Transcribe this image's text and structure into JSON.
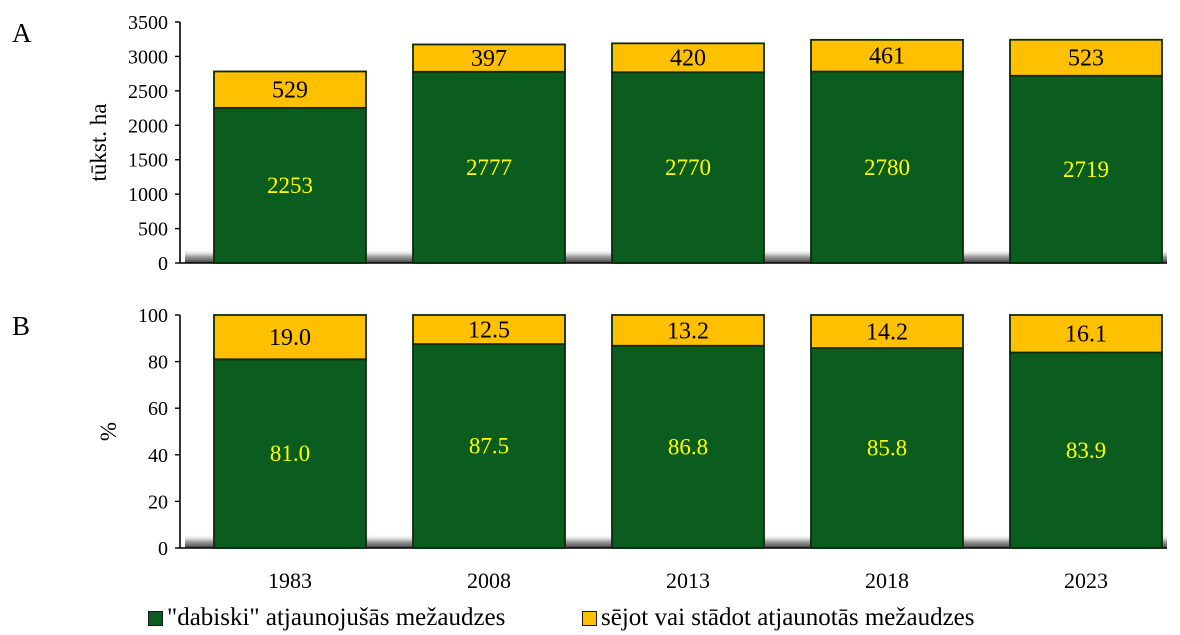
{
  "chart_data": [
    {
      "type": "bar",
      "stacked": true,
      "panel_label": "A",
      "ylabel": "tūkst. ha",
      "ylim": [
        0,
        3500
      ],
      "yticks": [
        0,
        500,
        1000,
        1500,
        2000,
        2500,
        3000,
        3500
      ],
      "categories": [
        "1983",
        "2008",
        "2013",
        "2018",
        "2023"
      ],
      "series": [
        {
          "name": "\"dabiski\" atjaunojušās mežaudzes",
          "color": "#0b5c1f",
          "label_color": "#ffff00",
          "values": [
            2253,
            2777,
            2770,
            2780,
            2719
          ]
        },
        {
          "name": "sējot vai stādot atjaunotās mežaudzes",
          "color": "#ffc000",
          "label_color": "#000000",
          "values": [
            529,
            397,
            420,
            461,
            523
          ]
        }
      ],
      "value_labels": [
        [
          "2253",
          "2777",
          "2770",
          "2780",
          "2719"
        ],
        [
          "529",
          "397",
          "420",
          "461",
          "523"
        ]
      ]
    },
    {
      "type": "bar",
      "stacked": true,
      "panel_label": "B",
      "ylabel": "%",
      "ylim": [
        0,
        100
      ],
      "yticks": [
        0,
        20,
        40,
        60,
        80,
        100
      ],
      "categories": [
        "1983",
        "2008",
        "2013",
        "2018",
        "2023"
      ],
      "series": [
        {
          "name": "\"dabiski\" atjaunojušās mežaudzes",
          "color": "#0b5c1f",
          "label_color": "#ffff00",
          "values": [
            81.0,
            87.5,
            86.8,
            85.8,
            83.9
          ]
        },
        {
          "name": "sējot vai stādot atjaunotās mežaudzes",
          "color": "#ffc000",
          "label_color": "#000000",
          "values": [
            19.0,
            12.5,
            13.2,
            14.2,
            16.1
          ]
        }
      ],
      "value_labels": [
        [
          "81.0",
          "87.5",
          "86.8",
          "85.8",
          "83.9"
        ],
        [
          "19.0",
          "12.5",
          "13.2",
          "14.2",
          "16.1"
        ]
      ]
    }
  ],
  "legend": [
    {
      "label": "\"dabiski\" atjaunojušās mežaudzes",
      "color": "#0b5c1f"
    },
    {
      "label": "sējot vai stādot atjaunotās mežaudzes",
      "color": "#ffc000"
    }
  ]
}
